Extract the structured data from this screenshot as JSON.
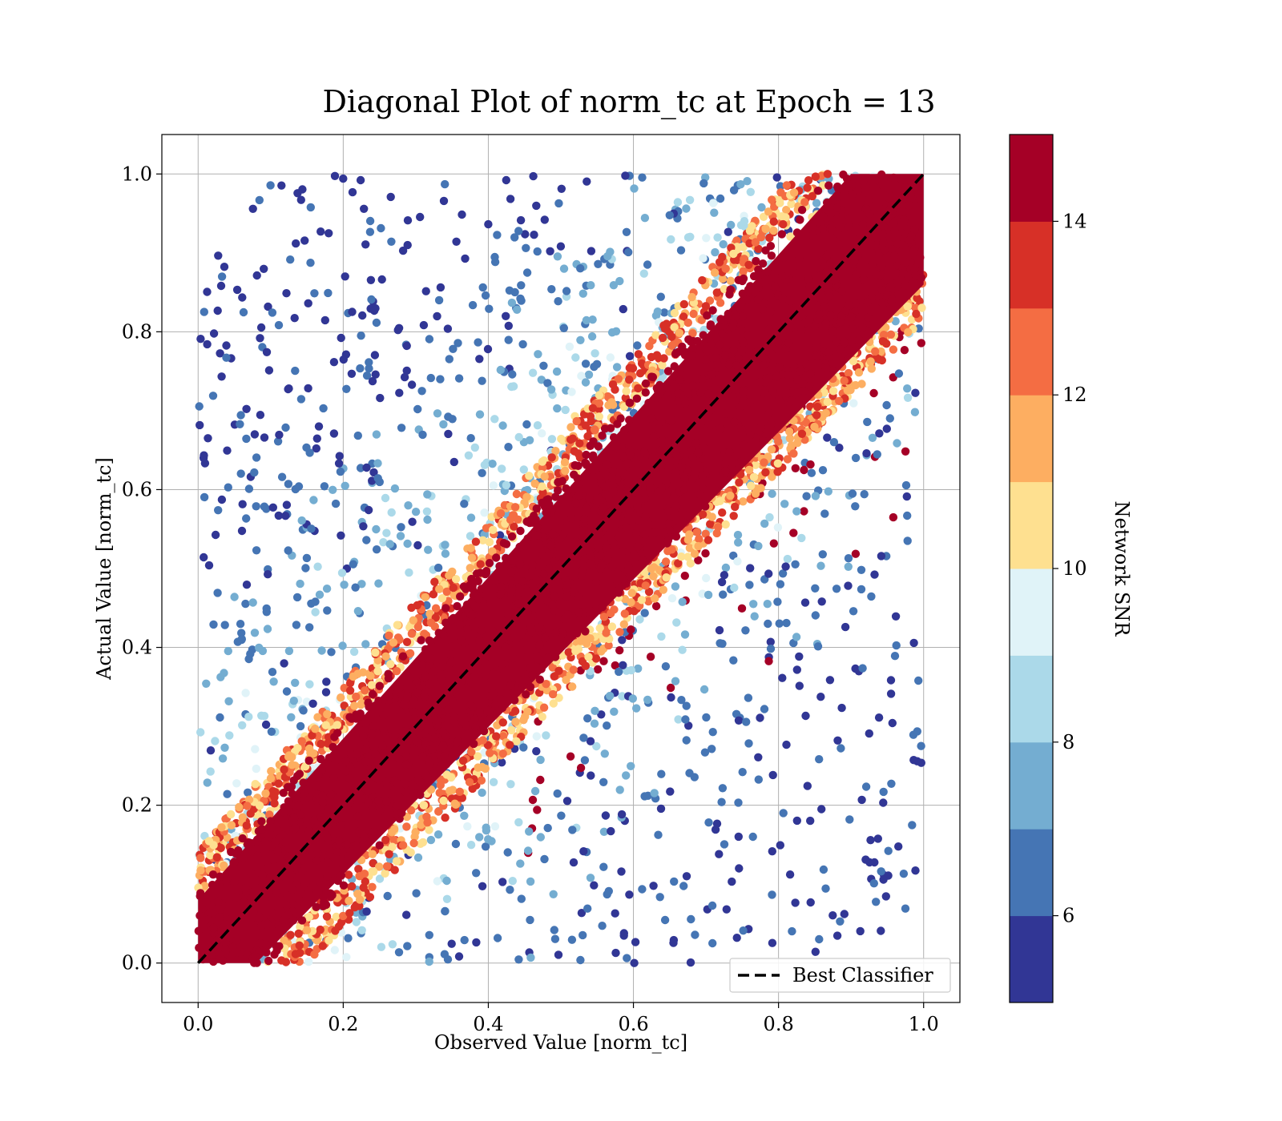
{
  "chart_data": {
    "type": "scatter",
    "title": "Diagonal Plot of norm_tc at Epoch = 13",
    "xlabel": "Observed Value [norm_tc]",
    "ylabel": "Actual Value [norm_tc]",
    "xlim": [
      -0.05,
      1.05
    ],
    "ylim": [
      -0.05,
      1.05
    ],
    "xticks": [
      0.0,
      0.2,
      0.4,
      0.6,
      0.8,
      1.0
    ],
    "yticks": [
      0.0,
      0.2,
      0.4,
      0.6,
      0.8,
      1.0
    ],
    "xtick_labels": [
      "0.0",
      "0.2",
      "0.4",
      "0.6",
      "0.8",
      "1.0"
    ],
    "ytick_labels": [
      "0.0",
      "0.2",
      "0.4",
      "0.6",
      "0.8",
      "1.0"
    ],
    "grid": true,
    "legend": {
      "placement": "lower-right",
      "entries": [
        "Best Classifier"
      ]
    },
    "reference_line": {
      "name": "Best Classifier",
      "x": [
        0.0,
        1.0
      ],
      "y": [
        0.0,
        1.0
      ],
      "style": "dashed",
      "color": "#000000"
    },
    "colorbar": {
      "label": "Network SNR",
      "range": [
        5,
        15
      ],
      "ticks": [
        6,
        8,
        10,
        12,
        14
      ],
      "tick_labels": [
        "6",
        "8",
        "10",
        "12",
        "14"
      ],
      "colors": [
        "#313695",
        "#4575b4",
        "#74add1",
        "#abd9e9",
        "#e0f3f8",
        "#fee090",
        "#fdae61",
        "#f46d43",
        "#d73027",
        "#a50026"
      ]
    }
  }
}
